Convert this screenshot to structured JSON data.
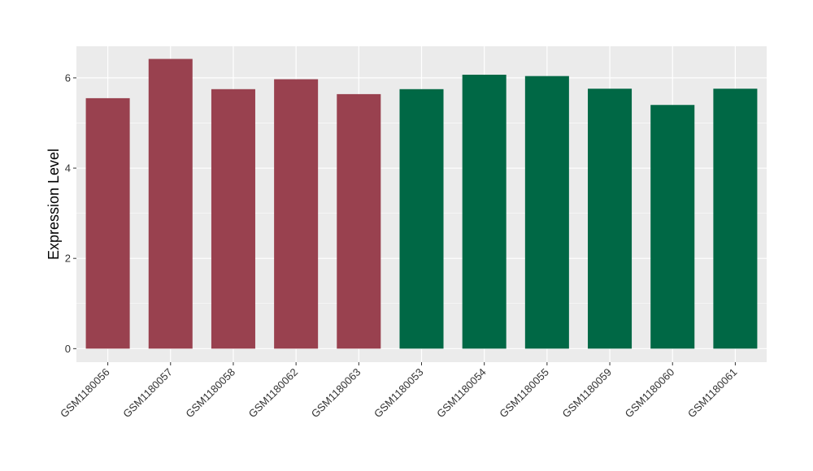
{
  "chart_data": {
    "type": "bar",
    "title": "",
    "xlabel": "",
    "ylabel": "Expression Level",
    "ylim": [
      -0.3,
      6.7
    ],
    "yticks": [
      0,
      2,
      4,
      6
    ],
    "grid": true,
    "legend": "none",
    "categories": [
      "GSM1180056",
      "GSM1180057",
      "GSM1180058",
      "GSM1180062",
      "GSM1180063",
      "GSM1180053",
      "GSM1180054",
      "GSM1180055",
      "GSM1180059",
      "GSM1180060",
      "GSM1180061"
    ],
    "values": [
      5.55,
      6.42,
      5.75,
      5.97,
      5.64,
      5.75,
      6.07,
      6.04,
      5.76,
      5.4,
      5.76
    ],
    "bar_colors": [
      "#99414f",
      "#99414f",
      "#99414f",
      "#99414f",
      "#99414f",
      "#006845",
      "#006845",
      "#006845",
      "#006845",
      "#006845",
      "#006845"
    ],
    "panel_background": "#ebebeb",
    "grid_color": "#ffffff"
  }
}
